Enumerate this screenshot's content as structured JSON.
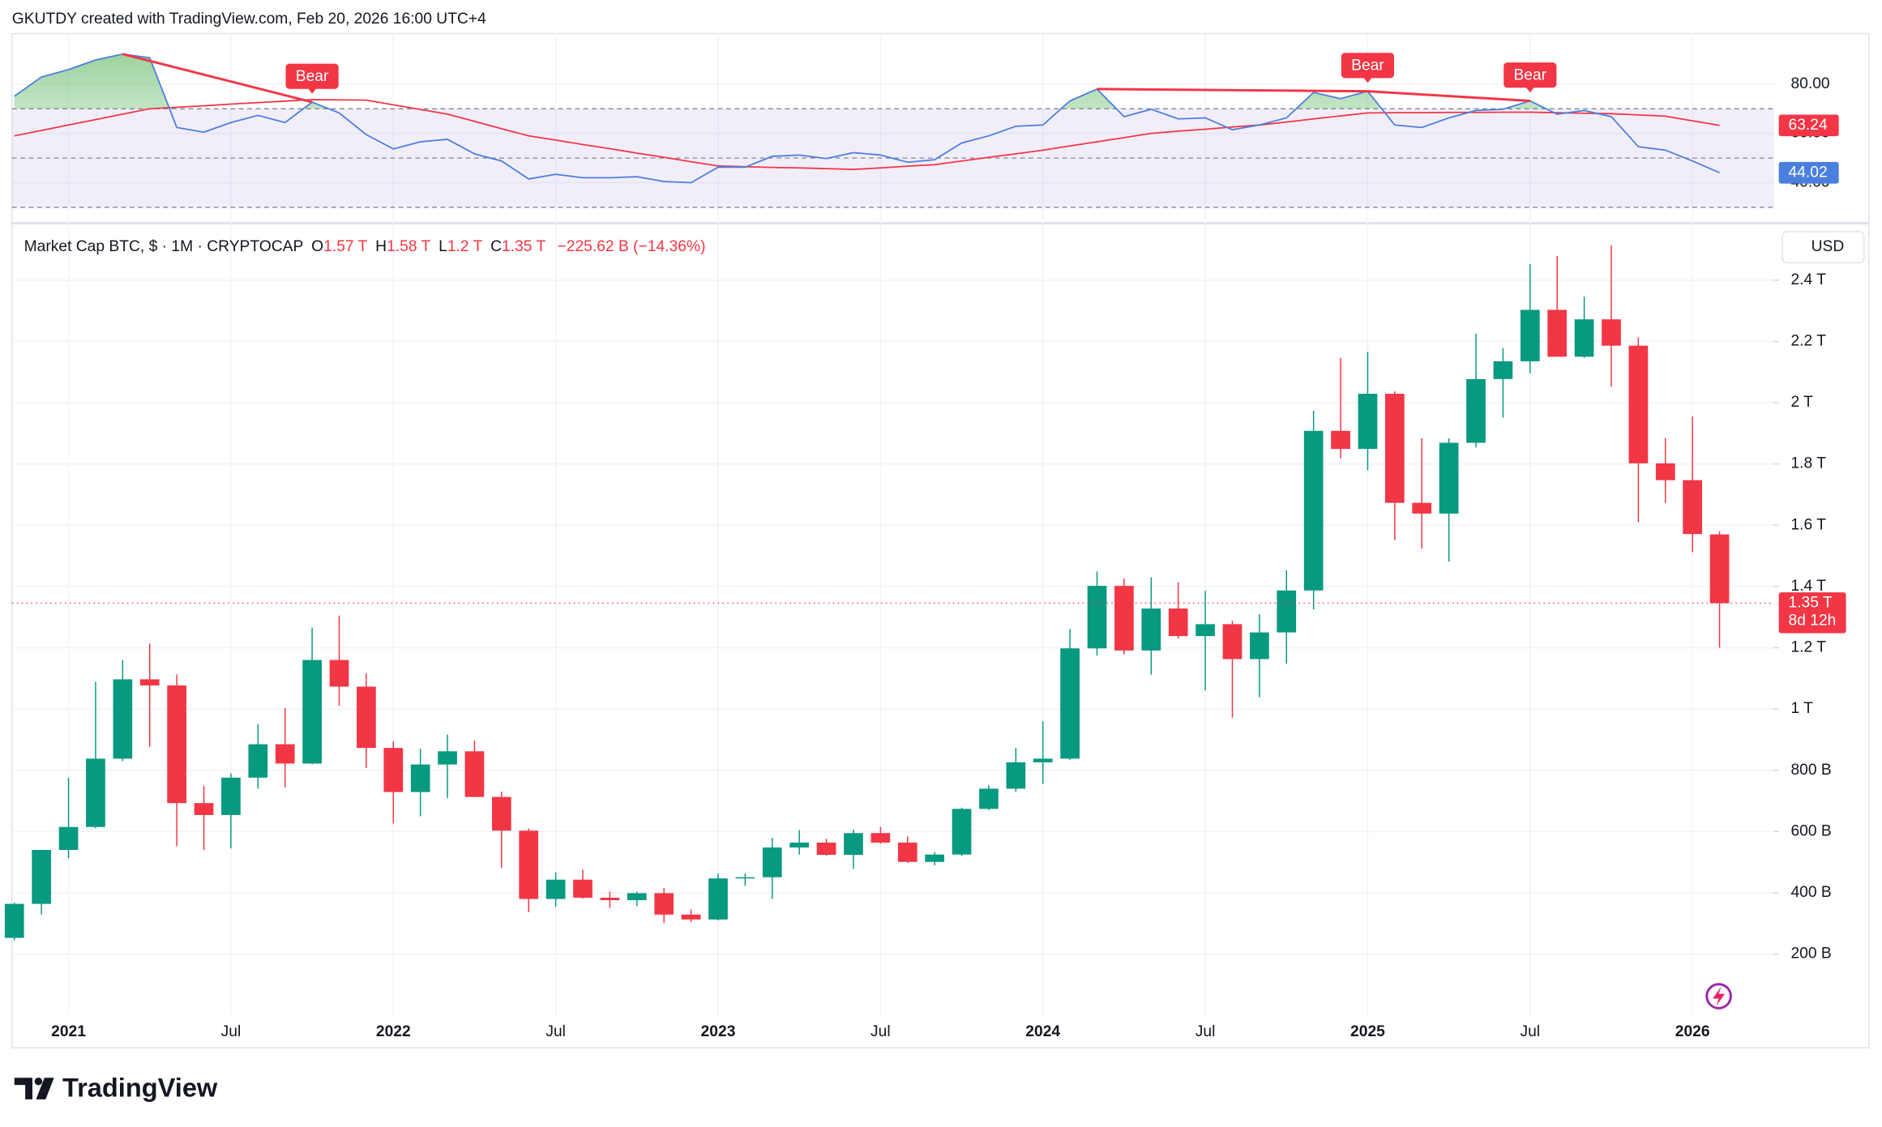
{
  "header": {
    "caption": "GKUTDY created with TradingView.com, Feb 20, 2026 16:00 UTC+4"
  },
  "chart_data": [
    {
      "type": "candlestick",
      "title": "Market Cap BTC, $ · 1M · CRYPTOCAP",
      "ohlc_legend": [
        {
          "key": "O",
          "value": "1.57 T"
        },
        {
          "key": "H",
          "value": "1.58 T"
        },
        {
          "key": "L",
          "value": "1.2 T"
        },
        {
          "key": "C",
          "value": "1.35 T"
        }
      ],
      "change": "−225.62 B (−14.36%)",
      "currency": "USD",
      "last_price_label": "1.35 T",
      "countdown": "8d 12h",
      "up_color": "#089981",
      "down_color": "#f23645",
      "grid": true,
      "x": [
        "2020-11",
        "2020-12",
        "2021-01",
        "2021-02",
        "2021-03",
        "2021-04",
        "2021-05",
        "2021-06",
        "2021-07",
        "2021-08",
        "2021-09",
        "2021-10",
        "2021-11",
        "2021-12",
        "2022-01",
        "2022-02",
        "2022-03",
        "2022-04",
        "2022-05",
        "2022-06",
        "2022-07",
        "2022-08",
        "2022-09",
        "2022-10",
        "2022-11",
        "2022-12",
        "2023-01",
        "2023-02",
        "2023-03",
        "2023-04",
        "2023-05",
        "2023-06",
        "2023-07",
        "2023-08",
        "2023-09",
        "2023-10",
        "2023-11",
        "2023-12",
        "2024-01",
        "2024-02",
        "2024-03",
        "2024-04",
        "2024-05",
        "2024-06",
        "2024-07",
        "2024-08",
        "2024-09",
        "2024-10",
        "2024-11",
        "2024-12",
        "2025-01",
        "2025-02",
        "2025-03",
        "2025-04",
        "2025-05",
        "2025-06",
        "2025-07",
        "2025-08",
        "2025-09",
        "2025-10",
        "2025-11",
        "2025-12",
        "2026-01",
        "2026-02"
      ],
      "open": [
        253,
        364,
        540,
        615,
        838,
        1097,
        1077,
        693,
        654,
        776,
        885,
        822,
        1160,
        1073,
        873,
        729,
        819,
        862,
        713,
        603,
        380,
        443,
        384,
        376,
        399,
        329,
        313,
        447,
        451,
        548,
        564,
        524,
        595,
        564,
        501,
        525,
        674,
        740,
        826,
        838,
        1198,
        1402,
        1191,
        1328,
        1238,
        1277,
        1163,
        1250,
        1387,
        1908,
        1849,
        2029,
        1673,
        1638,
        1869,
        2077,
        2135,
        2303,
        2150,
        2272,
        2186,
        1802,
        1747,
        1570
      ],
      "high": [
        368,
        540,
        776,
        1089,
        1160,
        1214,
        1113,
        750,
        790,
        951,
        1003,
        1266,
        1305,
        1116,
        895,
        870,
        917,
        897,
        730,
        610,
        467,
        475,
        404,
        404,
        416,
        346,
        463,
        463,
        580,
        605,
        576,
        607,
        615,
        584,
        533,
        678,
        752,
        873,
        960,
        1261,
        1449,
        1426,
        1430,
        1414,
        1386,
        1288,
        1309,
        1453,
        1974,
        2146,
        2166,
        2037,
        1884,
        1884,
        2225,
        2178,
        2452,
        2479,
        2346,
        2514,
        2213,
        1884,
        1955,
        1580
      ],
      "low": [
        245,
        329,
        513,
        611,
        830,
        877,
        552,
        540,
        545,
        740,
        744,
        820,
        1011,
        807,
        626,
        650,
        709,
        712,
        482,
        337,
        355,
        381,
        350,
        356,
        301,
        305,
        310,
        423,
        380,
        525,
        521,
        478,
        560,
        498,
        490,
        520,
        670,
        730,
        756,
        834,
        1175,
        1178,
        1112,
        1230,
        1061,
        972,
        1038,
        1148,
        1325,
        1818,
        1779,
        1551,
        1524,
        1481,
        1854,
        1951,
        2096,
        2150,
        2146,
        2052,
        1610,
        1673,
        1512,
        1200
      ],
      "close": [
        364,
        540,
        615,
        838,
        1097,
        1077,
        693,
        654,
        776,
        885,
        822,
        1160,
        1073,
        873,
        729,
        819,
        862,
        713,
        603,
        380,
        443,
        384,
        376,
        399,
        329,
        313,
        447,
        451,
        548,
        564,
        524,
        595,
        564,
        501,
        525,
        674,
        740,
        826,
        838,
        1198,
        1402,
        1191,
        1328,
        1238,
        1277,
        1163,
        1250,
        1387,
        1908,
        1849,
        2029,
        1673,
        1638,
        1869,
        2077,
        2135,
        2303,
        2150,
        2272,
        2186,
        1802,
        1747,
        1571.2,
        1345.6
      ],
      "ylim": [
        0,
        2570
      ],
      "yticks": [
        {
          "value": 200,
          "label": "200 B"
        },
        {
          "value": 400,
          "label": "400 B"
        },
        {
          "value": 600,
          "label": "600 B"
        },
        {
          "value": 800,
          "label": "800 B"
        },
        {
          "value": 1000,
          "label": "1 T"
        },
        {
          "value": 1200,
          "label": "1.2 T"
        },
        {
          "value": 1400,
          "label": "1.4 T"
        },
        {
          "value": 1600,
          "label": "1.6 T"
        },
        {
          "value": 1800,
          "label": "1.8 T"
        },
        {
          "value": 2000,
          "label": "2 T"
        },
        {
          "value": 2200,
          "label": "2.2 T"
        },
        {
          "value": 2400,
          "label": "2.4 T"
        }
      ],
      "xticks": [
        {
          "value": "2021-01",
          "label": "2021"
        },
        {
          "value": "2021-07",
          "label": "Jul"
        },
        {
          "value": "2022-01",
          "label": "2022"
        },
        {
          "value": "2022-07",
          "label": "Jul"
        },
        {
          "value": "2023-01",
          "label": "2023"
        },
        {
          "value": "2023-07",
          "label": "Jul"
        },
        {
          "value": "2024-01",
          "label": "2024"
        },
        {
          "value": "2024-07",
          "label": "Jul"
        },
        {
          "value": "2025-01",
          "label": "2025"
        },
        {
          "value": "2025-07",
          "label": "Jul"
        },
        {
          "value": "2026-01",
          "label": "2026"
        }
      ]
    },
    {
      "type": "line",
      "series": [
        {
          "color": "#4a7fe0",
          "values": [
            75.1,
            82.9,
            85.9,
            89.8,
            92.2,
            90.7,
            62.4,
            60.5,
            64.4,
            67.3,
            64.4,
            72.7,
            68.3,
            59.5,
            53.7,
            56.6,
            57.6,
            51.7,
            48.8,
            41.5,
            43.4,
            42.0,
            42.0,
            42.4,
            40.5,
            40.0,
            46.3,
            46.3,
            50.7,
            51.2,
            49.8,
            52.2,
            51.2,
            48.3,
            49.3,
            56.1,
            59.0,
            62.9,
            63.4,
            73.2,
            78.0,
            66.8,
            69.8,
            65.9,
            66.3,
            61.5,
            63.4,
            66.3,
            76.6,
            74.1,
            77.1,
            63.4,
            62.4,
            66.3,
            69.3,
            69.8,
            73.2,
            67.8,
            69.3,
            66.8,
            54.6,
            53.2,
            48.8,
            44.02
          ]
        },
        {
          "color": "#f23645",
          "values": [
            59.0,
            61.2,
            63.4,
            65.6,
            67.8,
            70.0,
            70.6,
            71.2,
            71.9,
            72.5,
            73.1,
            73.7,
            73.6,
            73.5,
            71.6,
            69.7,
            67.8,
            64.9,
            61.9,
            59.0,
            57.3,
            55.5,
            53.8,
            52.0,
            50.3,
            48.5,
            46.8,
            46.5,
            46.2,
            46.0,
            45.7,
            45.4,
            46.0,
            46.7,
            47.3,
            48.8,
            50.3,
            51.7,
            53.2,
            54.9,
            56.6,
            58.3,
            60.0,
            60.9,
            61.7,
            62.6,
            63.4,
            64.6,
            65.9,
            67.1,
            68.3,
            68.4,
            68.4,
            68.5,
            68.5,
            68.6,
            68.6,
            68.4,
            68.2,
            68.0,
            67.5,
            67.0,
            65.1,
            63.24
          ]
        }
      ],
      "ylim": [
        25,
        100.5
      ],
      "yticks": [
        {
          "value": 40,
          "label": "40.00"
        },
        {
          "value": 60,
          "label": "60.00"
        },
        {
          "value": 80,
          "label": "80.00"
        }
      ],
      "band": {
        "upper": 70,
        "middle": 50,
        "lower": 30,
        "color": "#7e57c2"
      },
      "overbought_color": "#4caf50",
      "divergences": [
        {
          "label": "Bear",
          "from": "2021-03",
          "to": "2021-10"
        },
        {
          "label": "Bear",
          "from": "2024-03",
          "to": "2025-01"
        },
        {
          "label": "Bear",
          "from": "2025-01",
          "to": "2025-07"
        }
      ]
    }
  ],
  "footer": {
    "brand": "TradingView"
  }
}
